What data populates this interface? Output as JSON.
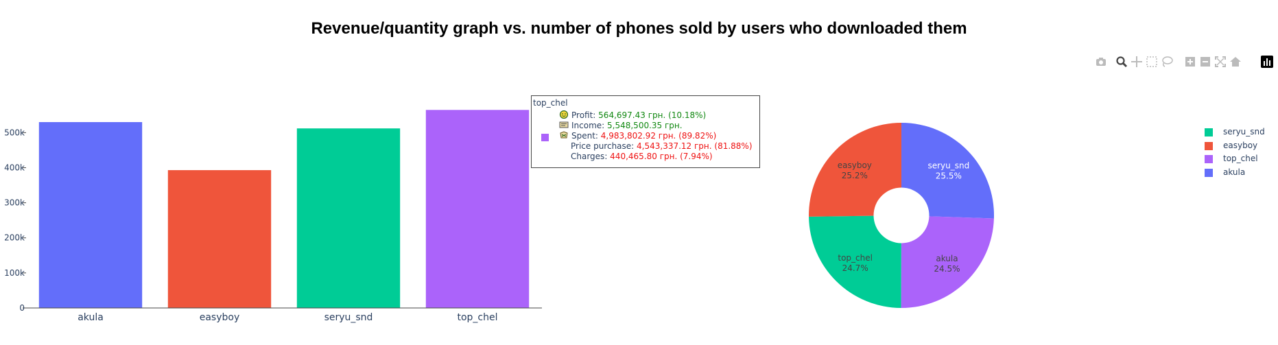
{
  "title": "Revenue/quantity graph vs. number of phones sold by users who downloaded them",
  "colors": {
    "akula": "#636efa",
    "easyboy": "#ef553b",
    "seryu_snd": "#00cc96",
    "top_chel": "#ab63fa",
    "axis_text": "#2a3f5f",
    "green": "#118811",
    "red": "#ee1111"
  },
  "modebar": {
    "buttons": [
      "camera-icon",
      "zoom-icon",
      "pan-icon",
      "box-select-icon",
      "lasso-icon",
      "zoom-in-icon",
      "zoom-out-icon",
      "autoscale-icon",
      "reset-axes-icon",
      "plotly-logo-icon"
    ]
  },
  "hover": {
    "name": "top_chel",
    "lines": [
      {
        "label": "Profit: ",
        "value": "564,697.43 грн. (10.18%)",
        "tone": "green",
        "icon": "profit-icon"
      },
      {
        "label": "Income: ",
        "value": "5,548,500.35 грн.",
        "tone": "green",
        "icon": "income-icon"
      },
      {
        "label": "Spent: ",
        "value": "4,983,802.92 грн. (89.82%)",
        "tone": "red",
        "icon": "spent-icon"
      },
      {
        "label": "Price purchase: ",
        "value": "4,543,337.12 грн. (81.88%)",
        "tone": "red",
        "icon": ""
      },
      {
        "label": "Charges: ",
        "value": "440,465.80 грн. (7.94%)",
        "tone": "red",
        "icon": ""
      }
    ]
  },
  "legend": [
    "seryu_snd",
    "easyboy",
    "top_chel",
    "akula"
  ],
  "chart_data": [
    {
      "type": "bar",
      "categories": [
        "akula",
        "easyboy",
        "seryu_snd",
        "top_chel"
      ],
      "values": [
        530000,
        393000,
        512000,
        564697.43
      ],
      "colors": [
        "#636efa",
        "#ef553b",
        "#00cc96",
        "#ab63fa"
      ],
      "ylim": [
        0,
        620000
      ],
      "yticks": [
        0,
        100000,
        200000,
        300000,
        400000,
        500000
      ],
      "ytick_labels": [
        "0",
        "100k",
        "200k",
        "300k",
        "400k",
        "500k"
      ],
      "grid": false
    },
    {
      "type": "pie",
      "hole": 0.3,
      "labels": [
        "seryu_snd",
        "akula",
        "top_chel",
        "easyboy"
      ],
      "values": [
        25.5,
        24.5,
        24.7,
        25.2
      ],
      "percent_text": [
        "25.5%",
        "24.5%",
        "24.7%",
        "25.2%"
      ],
      "colors": [
        "#636efa",
        "#ab63fa",
        "#00cc96",
        "#ef553b"
      ],
      "legend_position": "top-right"
    }
  ]
}
